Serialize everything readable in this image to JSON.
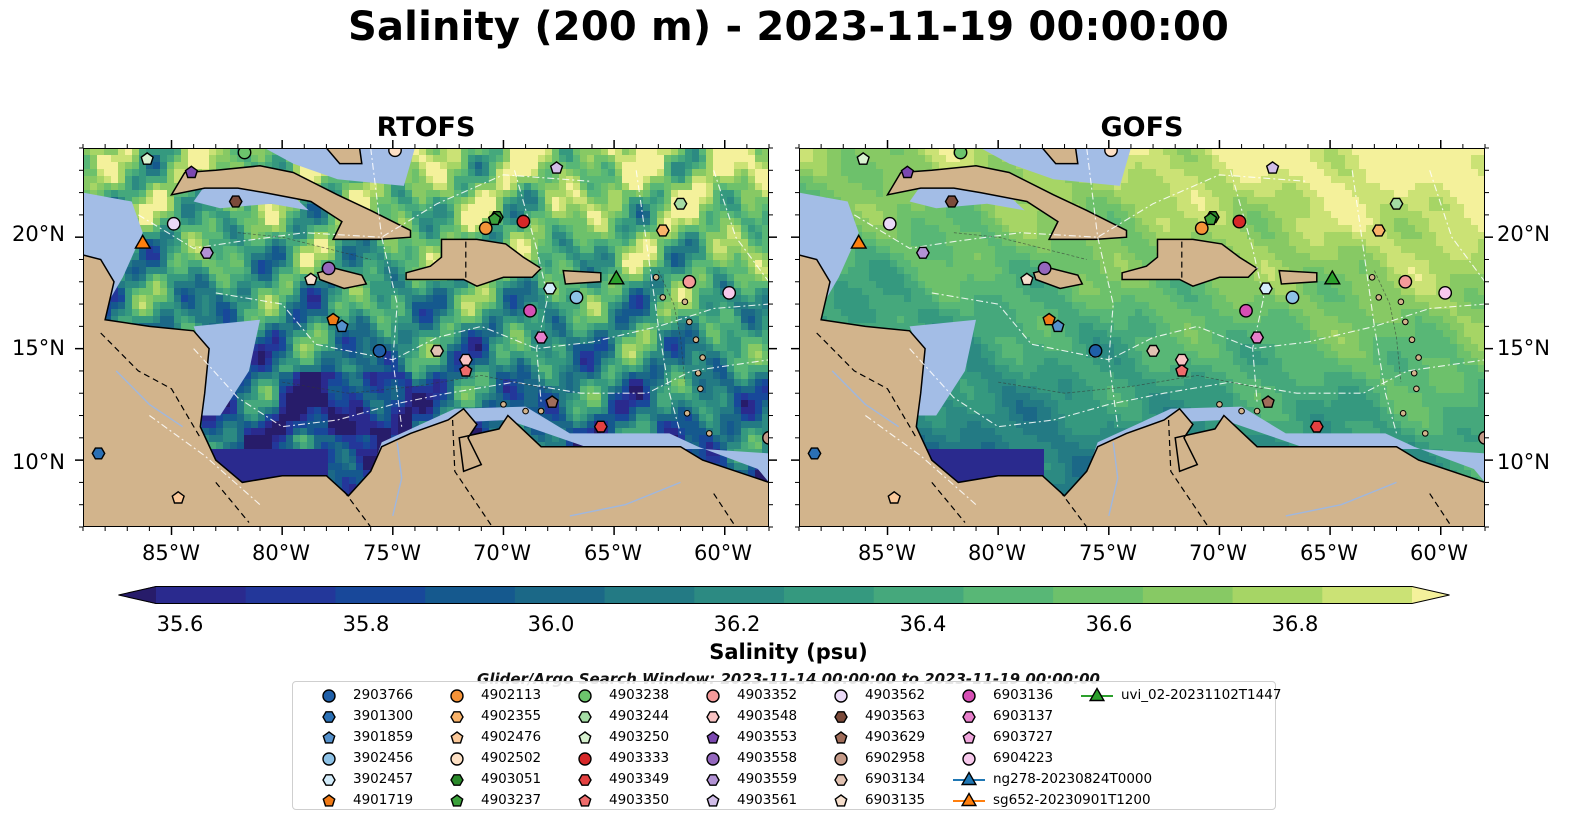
{
  "title": "Salinity (200 m) - 2023-11-19 00:00:00",
  "panels": [
    {
      "title": "RTOFS",
      "field": "rtofs"
    },
    {
      "title": "GOFS",
      "field": "gofs"
    }
  ],
  "lon_ticks": [
    "85°W",
    "80°W",
    "75°W",
    "70°W",
    "65°W",
    "60°W"
  ],
  "lat_ticks": [
    "20°N",
    "15°N",
    "10°N"
  ],
  "map_extent": {
    "lon": [
      -89,
      -58
    ],
    "lat": [
      7,
      24
    ]
  },
  "colorbar": {
    "label": "Salinity (psu)",
    "ticks": [
      "35.6",
      "35.8",
      "36.0",
      "36.2",
      "36.4",
      "36.6",
      "36.8"
    ],
    "min": 35.5,
    "max": 36.9,
    "extend": "both",
    "colors": [
      "#271c6a",
      "#2a2a8e",
      "#23379a",
      "#18489a",
      "#15598e",
      "#1b6887",
      "#237a84",
      "#2c8a82",
      "#35997f",
      "#45a87c",
      "#58b776",
      "#6dc16b",
      "#87c964",
      "#a6d565",
      "#cbe275",
      "#f4f19b"
    ]
  },
  "search_window": "Glider/Argo Search Window: 2023-11-14 00:00:00 to 2023-11-19 00:00:00",
  "colors": {
    "land": "#d2b48c",
    "shelf": "#a3bde6",
    "plot_border": "#000000"
  },
  "legend": [
    {
      "label": "2903766",
      "marker": "circle",
      "color": "#1f5fa8"
    },
    {
      "label": "3901300",
      "marker": "hexagon",
      "color": "#2b70b5"
    },
    {
      "label": "3901859",
      "marker": "pentagon",
      "color": "#5591cc"
    },
    {
      "label": "3902456",
      "marker": "circle",
      "color": "#8ec2e6"
    },
    {
      "label": "3902457",
      "marker": "hexagon",
      "color": "#d3ecfa"
    },
    {
      "label": "4901719",
      "marker": "pentagon",
      "color": "#f07a16"
    },
    {
      "label": "4902113",
      "marker": "circle",
      "color": "#f59338"
    },
    {
      "label": "4902355",
      "marker": "hexagon",
      "color": "#f9b36a"
    },
    {
      "label": "4902476",
      "marker": "pentagon",
      "color": "#fbc99a"
    },
    {
      "label": "4902502",
      "marker": "circle",
      "color": "#fde0c4"
    },
    {
      "label": "4903051",
      "marker": "hexagon",
      "color": "#2b8a2b"
    },
    {
      "label": "4903237",
      "marker": "pentagon",
      "color": "#3ba13b"
    },
    {
      "label": "4903238",
      "marker": "circle",
      "color": "#6cc46c"
    },
    {
      "label": "4903244",
      "marker": "hexagon",
      "color": "#a4dca4"
    },
    {
      "label": "4903250",
      "marker": "pentagon",
      "color": "#d8f2d0"
    },
    {
      "label": "4903333",
      "marker": "circle",
      "color": "#d62728"
    },
    {
      "label": "4903349",
      "marker": "hexagon",
      "color": "#e34040"
    },
    {
      "label": "4903350",
      "marker": "pentagon",
      "color": "#ee6b6b"
    },
    {
      "label": "4903352",
      "marker": "circle",
      "color": "#f49a9a"
    },
    {
      "label": "4903548",
      "marker": "hexagon",
      "color": "#f8c2c2"
    },
    {
      "label": "4903553",
      "marker": "pentagon",
      "color": "#7b48b0"
    },
    {
      "label": "4903558",
      "marker": "circle",
      "color": "#9467bd"
    },
    {
      "label": "4903559",
      "marker": "hexagon",
      "color": "#b292d4"
    },
    {
      "label": "4903561",
      "marker": "pentagon",
      "color": "#d1bde8"
    },
    {
      "label": "4903562",
      "marker": "circle",
      "color": "#ead9f6"
    },
    {
      "label": "4903563",
      "marker": "hexagon",
      "color": "#7b4a3a"
    },
    {
      "label": "4903629",
      "marker": "pentagon",
      "color": "#a06d5a"
    },
    {
      "label": "6902958",
      "marker": "circle",
      "color": "#c49a88"
    },
    {
      "label": "6903134",
      "marker": "hexagon",
      "color": "#e1c2b2"
    },
    {
      "label": "6903135",
      "marker": "pentagon",
      "color": "#f6dfcd"
    },
    {
      "label": "6903136",
      "marker": "circle",
      "color": "#d64fb4"
    },
    {
      "label": "6903137",
      "marker": "hexagon",
      "color": "#e77fcb"
    },
    {
      "label": "6903727",
      "marker": "pentagon",
      "color": "#f0a6dd"
    },
    {
      "label": "6904223",
      "marker": "circle",
      "color": "#f7c9ec"
    },
    {
      "label": "ng278-20230824T0000",
      "marker": "triangle-line",
      "color": "#1f77b4"
    },
    {
      "label": "sg652-20230901T1200",
      "marker": "triangle-line",
      "color": "#ff7f0e"
    },
    {
      "label": "uvi_02-20231102T1447",
      "marker": "triangle-line",
      "color": "#2ca02c"
    }
  ],
  "platform_positions": [
    {
      "label": "2903766",
      "lon": -75.6,
      "lat": 14.9
    },
    {
      "label": "3901300",
      "lon": -88.3,
      "lat": 10.3
    },
    {
      "label": "3901859",
      "lon": -77.3,
      "lat": 16.0
    },
    {
      "label": "3902456",
      "lon": -66.7,
      "lat": 17.3
    },
    {
      "label": "3902457",
      "lon": -67.9,
      "lat": 17.7
    },
    {
      "label": "4901719",
      "lon": -77.7,
      "lat": 16.3
    },
    {
      "label": "4902113",
      "lon": -70.8,
      "lat": 20.4
    },
    {
      "label": "4902355",
      "lon": -62.8,
      "lat": 20.3
    },
    {
      "label": "4902476",
      "lon": -84.7,
      "lat": 8.3
    },
    {
      "label": "4902502",
      "lon": -74.9,
      "lat": 23.9
    },
    {
      "label": "4903051",
      "lon": -70.3,
      "lat": 20.9
    },
    {
      "label": "4903237",
      "lon": -70.4,
      "lat": 20.8
    },
    {
      "label": "4903238",
      "lon": -81.7,
      "lat": 23.8
    },
    {
      "label": "4903244",
      "lon": -62.0,
      "lat": 21.5
    },
    {
      "label": "4903250",
      "lon": -86.1,
      "lat": 23.5
    },
    {
      "label": "4903333",
      "lon": -69.1,
      "lat": 20.7
    },
    {
      "label": "4903349",
      "lon": -65.6,
      "lat": 11.5
    },
    {
      "label": "4903350",
      "lon": -71.7,
      "lat": 14.0
    },
    {
      "label": "4903352",
      "lon": -61.6,
      "lat": 18.0
    },
    {
      "label": "4903548",
      "lon": -71.7,
      "lat": 14.5
    },
    {
      "label": "4903553",
      "lon": -84.1,
      "lat": 22.9
    },
    {
      "label": "4903558",
      "lon": -77.9,
      "lat": 18.6
    },
    {
      "label": "4903559",
      "lon": -83.4,
      "lat": 19.3
    },
    {
      "label": "4903561",
      "lon": -67.6,
      "lat": 23.1
    },
    {
      "label": "4903562",
      "lon": -84.9,
      "lat": 20.6
    },
    {
      "label": "4903563",
      "lon": -82.1,
      "lat": 21.6
    },
    {
      "label": "4903629",
      "lon": -67.8,
      "lat": 12.6
    },
    {
      "label": "6902958",
      "lon": -58.0,
      "lat": 11.0
    },
    {
      "label": "6903134",
      "lon": -73.0,
      "lat": 14.9
    },
    {
      "label": "6903135",
      "lon": -78.7,
      "lat": 18.1
    },
    {
      "label": "6903136",
      "lon": -68.8,
      "lat": 16.7
    },
    {
      "label": "6903137",
      "lon": -68.3,
      "lat": 15.5
    },
    {
      "label": "6903727",
      "lon": -80.0,
      "lat": 24.3
    },
    {
      "label": "6904223",
      "lon": -59.8,
      "lat": 17.5
    },
    {
      "label": "sg652-20230901T1200",
      "lon": -86.3,
      "lat": 19.7
    },
    {
      "label": "uvi_02-20231102T1447",
      "lon": -64.9,
      "lat": 18.1
    }
  ]
}
